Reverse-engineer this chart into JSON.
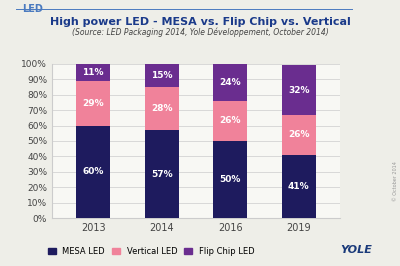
{
  "title": "High power LED - MESA vs. Flip Chip vs. Vertical",
  "subtitle": "(Source: LED Packaging 2014, Yole Développement, October 2014)",
  "categories": [
    "2013",
    "2014",
    "2016",
    "2019"
  ],
  "mesa": [
    60,
    57,
    50,
    41
  ],
  "vertical": [
    29,
    28,
    26,
    26
  ],
  "flipchip": [
    11,
    15,
    24,
    32
  ],
  "mesa_color": "#1e1b5e",
  "vertical_color": "#f0829a",
  "flipchip_color": "#6a2d8f",
  "bg_color": "#eeeee8",
  "plot_bg_color": "#f8f8f4",
  "title_color": "#1a3a8a",
  "subtitle_color": "#444444",
  "label_color": "#ffffff",
  "axis_label_color": "#444444",
  "grid_color": "#cccccc",
  "header_label": "LED",
  "header_color": "#4a7abf",
  "yole_color": "#1a3a7a",
  "bar_width": 0.5,
  "ylim": [
    0,
    100
  ],
  "yticks": [
    0,
    10,
    20,
    30,
    40,
    50,
    60,
    70,
    80,
    90,
    100
  ],
  "ytick_labels": [
    "0%",
    "10%",
    "20%",
    "30%",
    "40%",
    "50%",
    "60%",
    "70%",
    "80%",
    "90%",
    "100%"
  ],
  "copyright": "© October 2014"
}
